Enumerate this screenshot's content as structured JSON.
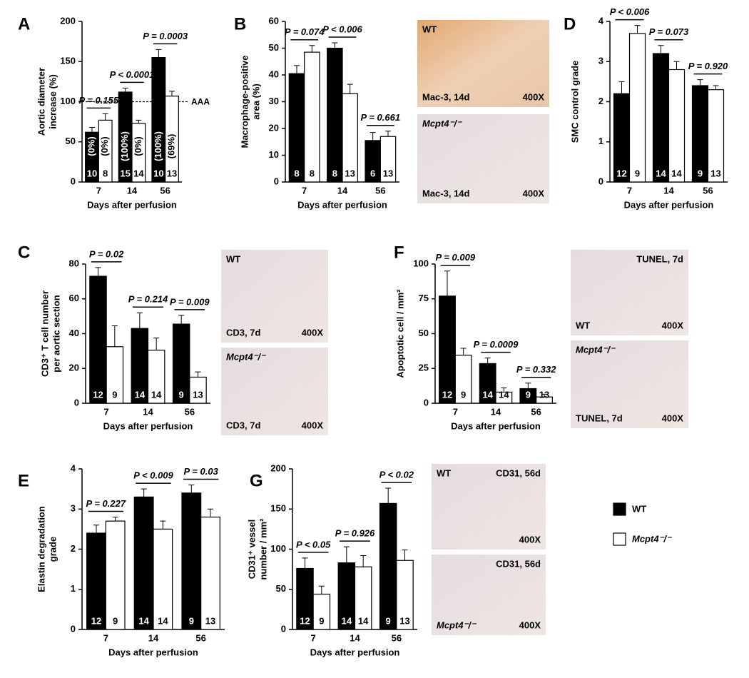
{
  "chart_data": [
    {
      "panel": "A",
      "type": "bar",
      "ylabel": [
        "Aortic diameter",
        "increase (%)"
      ],
      "xlabel": "Days after perfusion",
      "categories": [
        "7",
        "14",
        "56"
      ],
      "ylim": [
        0,
        200
      ],
      "yticks": [
        0,
        50,
        100,
        150,
        200
      ],
      "series": [
        {
          "values": [
            62,
            112,
            155
          ],
          "errors": [
            6,
            5,
            10
          ],
          "n_labels": [
            "10",
            "15",
            "10"
          ],
          "percent_labels": [
            "(0%)",
            "(100%)",
            "(100%)"
          ]
        },
        {
          "values": [
            77,
            73,
            107
          ],
          "errors": [
            8,
            4,
            6
          ],
          "n_labels": [
            "8",
            "14",
            "13"
          ],
          "percent_labels": [
            "(0%)",
            "(0%)",
            "(69%)"
          ]
        }
      ],
      "p_values": [
        "P = 0.155",
        "P < 0.0001",
        "P = 0.0003"
      ],
      "ref_line": 100,
      "ref_label": "AAA"
    },
    {
      "panel": "B",
      "type": "bar",
      "ylabel": [
        "Macrophage-positive",
        "area (%)"
      ],
      "xlabel": "Days after perfusion",
      "categories": [
        "7",
        "14",
        "56"
      ],
      "ylim": [
        0,
        60
      ],
      "yticks": [
        0,
        10,
        20,
        30,
        40,
        50,
        60
      ],
      "series": [
        {
          "values": [
            40.5,
            50,
            15.5
          ],
          "errors": [
            3,
            2,
            3
          ],
          "n_labels": [
            "8",
            "8",
            "6"
          ]
        },
        {
          "values": [
            48.5,
            33,
            17
          ],
          "errors": [
            2.5,
            3.5,
            2
          ],
          "n_labels": [
            "8",
            "13",
            "13"
          ]
        }
      ],
      "p_values": [
        "P = 0.074",
        "P < 0.006",
        "P = 0.661"
      ]
    },
    {
      "panel": "D",
      "type": "bar",
      "ylabel": [
        "SMC control grade"
      ],
      "xlabel": "Days after perfusion",
      "categories": [
        "7",
        "14",
        "56"
      ],
      "ylim": [
        0,
        4
      ],
      "yticks": [
        0,
        1,
        2,
        3,
        4
      ],
      "series": [
        {
          "values": [
            2.2,
            3.2,
            2.4
          ],
          "errors": [
            0.3,
            0.2,
            0.15
          ],
          "n_labels": [
            "12",
            "14",
            "9"
          ]
        },
        {
          "values": [
            3.7,
            2.8,
            2.3
          ],
          "errors": [
            0.2,
            0.2,
            0.1
          ],
          "n_labels": [
            "9",
            "14",
            "13"
          ]
        }
      ],
      "p_values": [
        "P < 0.006",
        "P = 0.073",
        "P = 0.920"
      ]
    },
    {
      "panel": "C",
      "type": "bar",
      "ylabel": [
        "CD3⁺ T cell number",
        "per aortic section"
      ],
      "xlabel": "Days after perfusion",
      "categories": [
        "7",
        "14",
        "56"
      ],
      "ylim": [
        0,
        80
      ],
      "yticks": [
        0,
        20,
        40,
        60,
        80
      ],
      "series": [
        {
          "values": [
            73,
            43,
            45.5
          ],
          "errors": [
            5,
            9,
            5
          ],
          "n_labels": [
            "12",
            "14",
            "9"
          ]
        },
        {
          "values": [
            32.5,
            30.5,
            15
          ],
          "errors": [
            12,
            7,
            3
          ],
          "n_labels": [
            "9",
            "14",
            "13"
          ]
        }
      ],
      "p_values": [
        "P = 0.02",
        "P = 0.214",
        "P = 0.009"
      ]
    },
    {
      "panel": "F",
      "type": "bar",
      "ylabel": [
        "Apoptotic cell / mm²"
      ],
      "xlabel": "Days after perfusion",
      "categories": [
        "7",
        "14",
        "56"
      ],
      "ylim": [
        0,
        100
      ],
      "yticks": [
        0,
        25,
        50,
        75,
        100
      ],
      "series": [
        {
          "values": [
            77,
            28.5,
            10.5
          ],
          "errors": [
            18,
            4,
            4
          ],
          "n_labels": [
            "12",
            "14",
            "9"
          ]
        },
        {
          "values": [
            34.5,
            8,
            4.5
          ],
          "errors": [
            5,
            3,
            2
          ],
          "n_labels": [
            "9",
            "14",
            "13"
          ]
        }
      ],
      "p_values": [
        "P = 0.009",
        "P = 0.0009",
        "P = 0.332"
      ]
    },
    {
      "panel": "E",
      "type": "bar",
      "ylabel": [
        "Elastin degradation",
        "grade"
      ],
      "xlabel": "Days after perfusion",
      "categories": [
        "7",
        "14",
        "56"
      ],
      "ylim": [
        0,
        4
      ],
      "yticks": [
        0,
        1,
        2,
        3,
        4
      ],
      "series": [
        {
          "values": [
            2.4,
            3.3,
            3.4
          ],
          "errors": [
            0.2,
            0.2,
            0.2
          ],
          "n_labels": [
            "12",
            "14",
            "9"
          ]
        },
        {
          "values": [
            2.7,
            2.5,
            2.8
          ],
          "errors": [
            0.1,
            0.2,
            0.2
          ],
          "n_labels": [
            "9",
            "14",
            "13"
          ]
        }
      ],
      "p_values": [
        "P = 0.227",
        "P < 0.009",
        "P = 0.03"
      ]
    },
    {
      "panel": "G",
      "type": "bar",
      "ylabel": [
        "CD31⁺ vessel",
        "number / mm²"
      ],
      "xlabel": "Days after perfusion",
      "categories": [
        "7",
        "14",
        "56"
      ],
      "ylim": [
        0,
        200
      ],
      "yticks": [
        0,
        50,
        100,
        150,
        200
      ],
      "series": [
        {
          "values": [
            76,
            83,
            157
          ],
          "errors": [
            13,
            20,
            19
          ],
          "n_labels": [
            "12",
            "14",
            "9"
          ]
        },
        {
          "values": [
            44,
            78,
            86
          ],
          "errors": [
            10,
            14,
            13
          ],
          "n_labels": [
            "9",
            "14",
            "13"
          ]
        }
      ],
      "p_values": [
        "P < 0.05",
        "P = 0.926",
        "P < 0.02"
      ]
    }
  ],
  "legend": [
    {
      "name": "WT",
      "color": "#000000"
    },
    {
      "name": "Mcpt4⁻/⁻",
      "color": "#ffffff"
    }
  ],
  "images": [
    {
      "labels": [
        "WT",
        "Mac-3, 14d",
        "400X"
      ]
    },
    {
      "labels": [
        "Mcpt4⁻/⁻",
        "Mac-3, 14d",
        "400X"
      ]
    },
    {
      "labels": [
        "WT",
        "CD3, 7d",
        "400X"
      ]
    },
    {
      "labels": [
        "Mcpt4⁻/⁻",
        "CD3, 7d",
        "400X"
      ]
    },
    {
      "labels": [
        "TUNEL, 7d",
        "WT",
        "400X"
      ]
    },
    {
      "labels": [
        "Mcpt4⁻/⁻",
        "TUNEL, 7d",
        "400X"
      ]
    },
    {
      "labels": [
        "WT",
        "CD31, 56d",
        "400X"
      ]
    },
    {
      "labels": [
        "CD31, 56d",
        "Mcpt4⁻/⁻",
        "400X"
      ]
    }
  ]
}
